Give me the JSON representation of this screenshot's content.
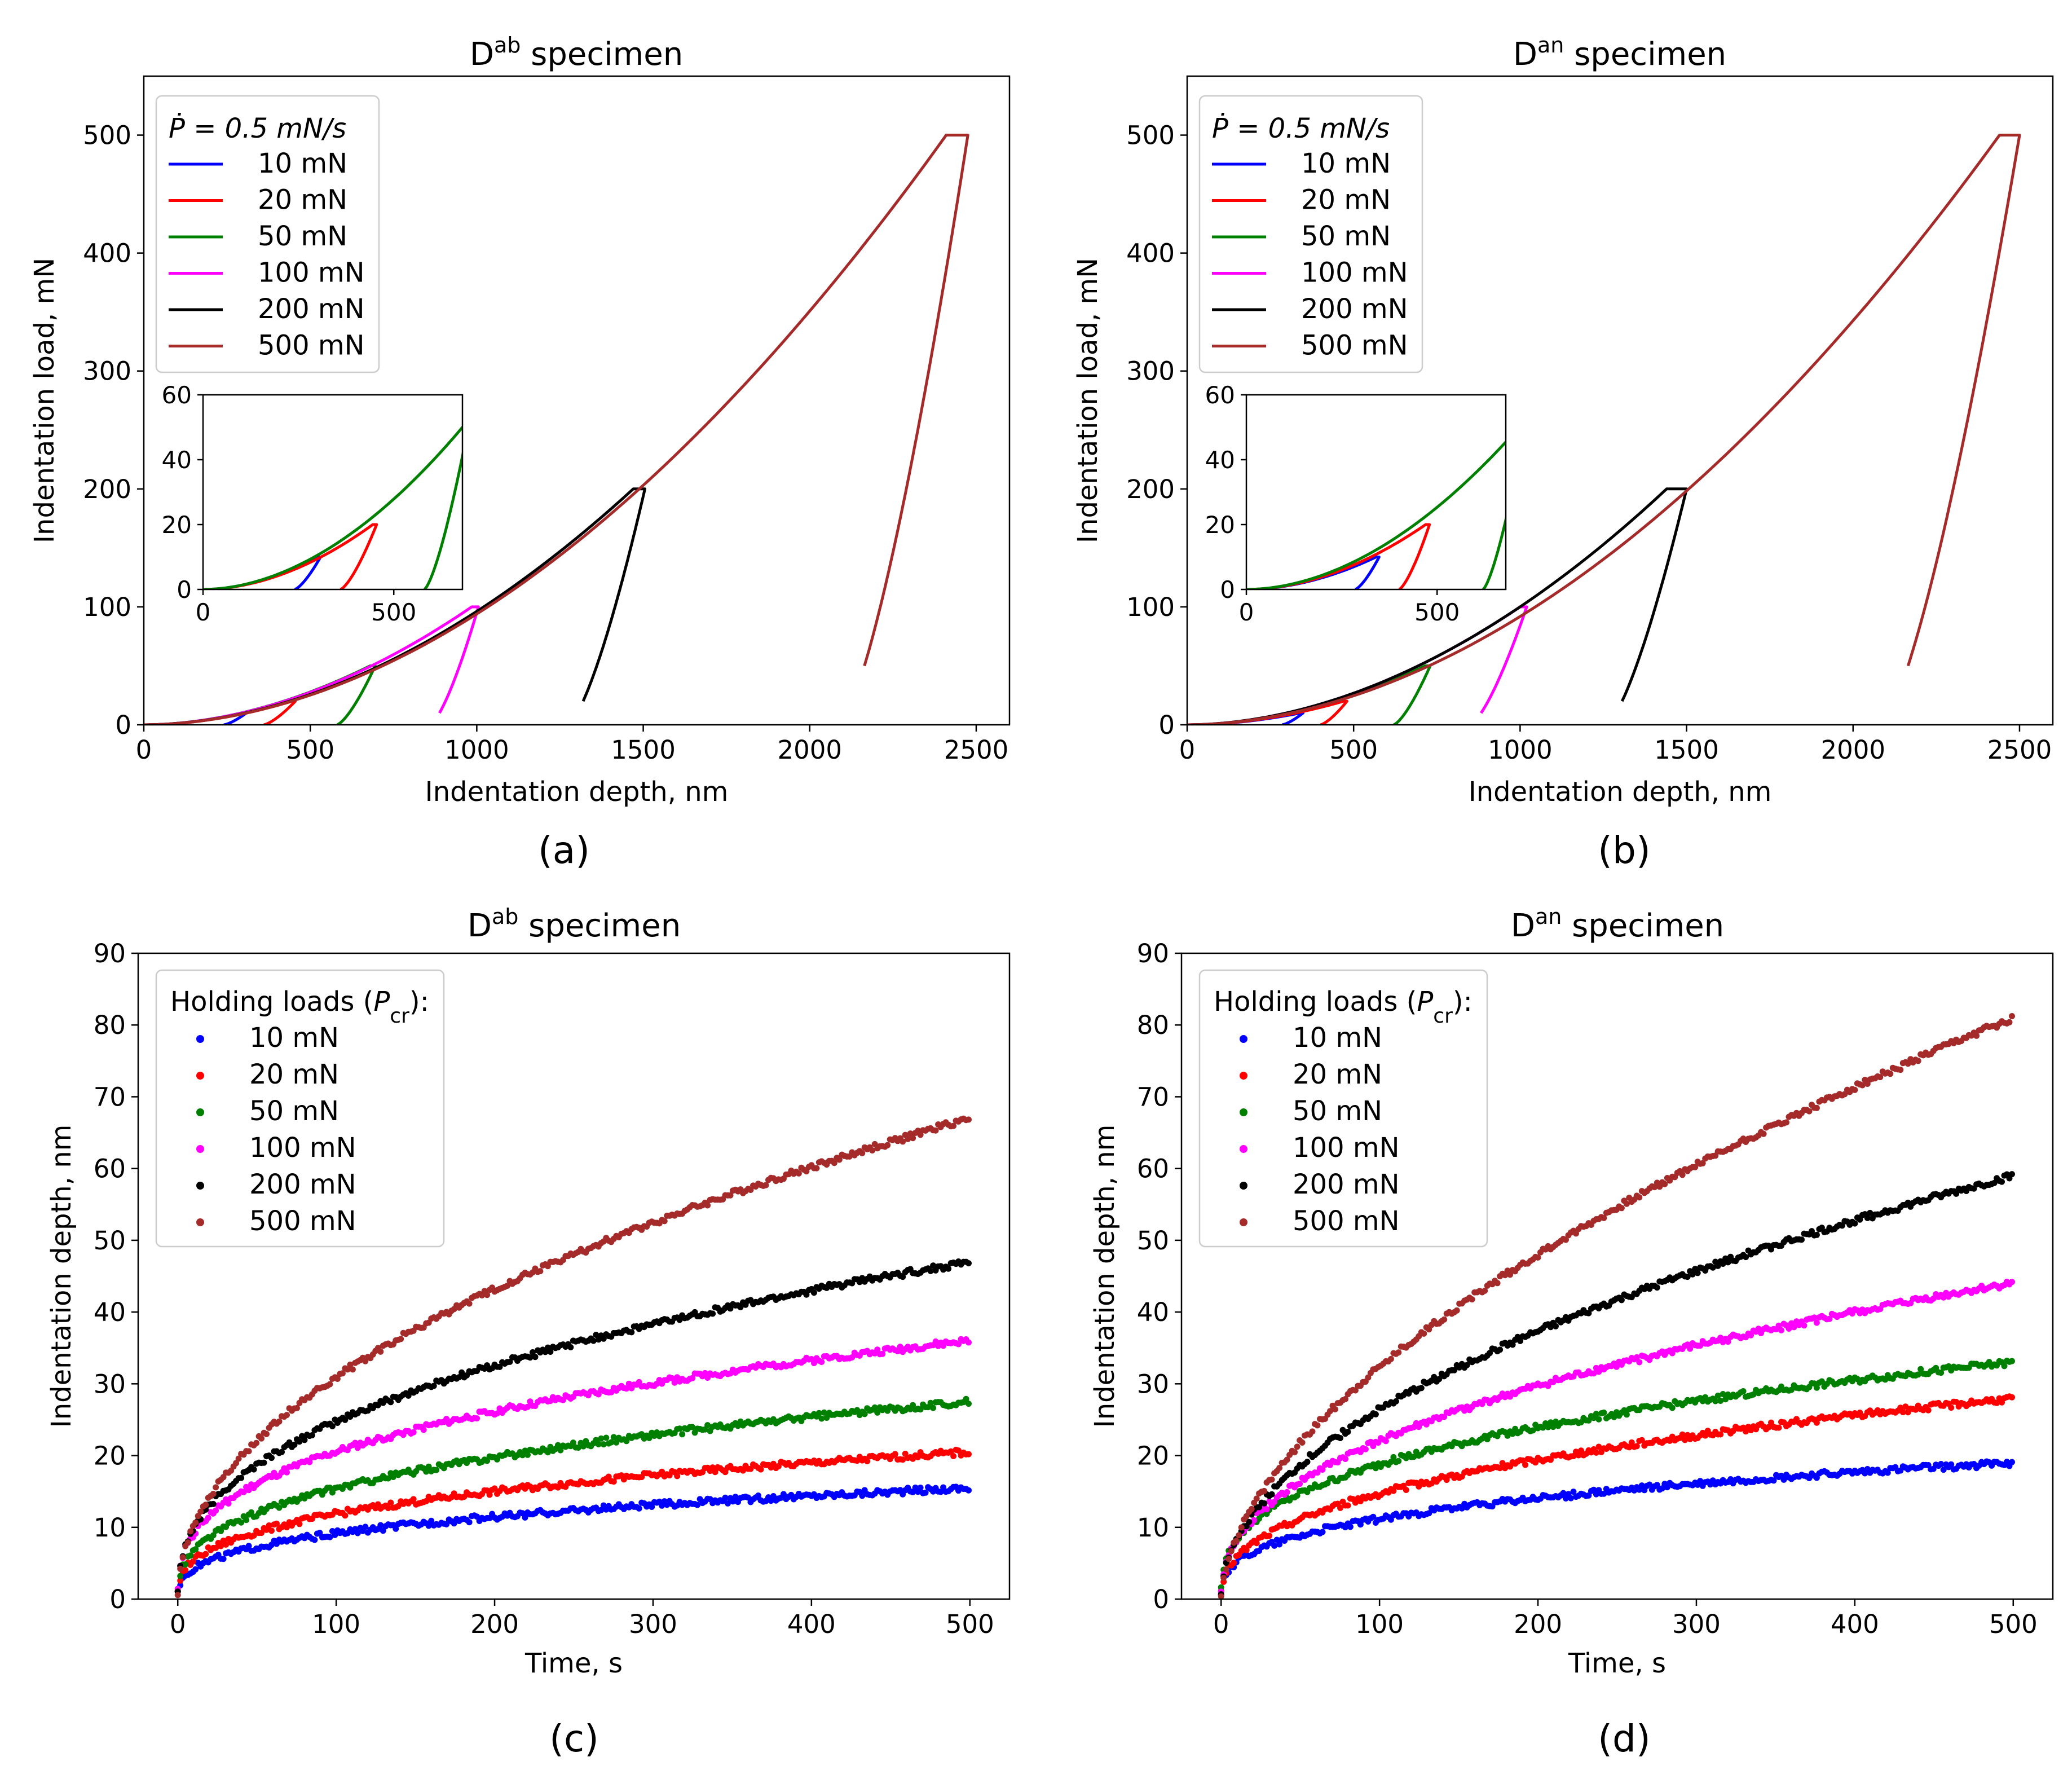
{
  "figure": {
    "captions": [
      "(a)",
      "(b)",
      "(c)",
      "(d)"
    ]
  },
  "chart_data": [
    {
      "id": "a",
      "type": "line",
      "title_main": "D",
      "title_sup": "ab",
      "title_rest": " specimen",
      "xlabel": "Indentation depth, nm",
      "ylabel": "Indentation load, mN",
      "xlim": [
        0,
        2600
      ],
      "ylim": [
        0,
        550
      ],
      "xticks": [
        0,
        500,
        1000,
        1500,
        2000,
        2500
      ],
      "yticks": [
        0,
        100,
        200,
        300,
        400,
        500
      ],
      "legend_title": "Ṗ = 0.5 mN/s",
      "legend_position": "upper-left",
      "series": [
        {
          "name": "10 mN",
          "color": "#0000ff",
          "max_load": 10,
          "max_depth": 300,
          "hold": 8,
          "final_depth": 240,
          "unload_end_load": 0
        },
        {
          "name": "20 mN",
          "color": "#ff0000",
          "max_load": 20,
          "max_depth": 445,
          "hold": 10,
          "final_depth": 360,
          "unload_end_load": 0
        },
        {
          "name": "50 mN",
          "color": "#008000",
          "max_load": 50,
          "max_depth": 680,
          "hold": 15,
          "final_depth": 580,
          "unload_end_load": 0
        },
        {
          "name": "100 mN",
          "color": "#ff00ff",
          "max_load": 100,
          "max_depth": 985,
          "hold": 20,
          "final_depth": 860,
          "unload_end_load": 10
        },
        {
          "name": "200 mN",
          "color": "#000000",
          "max_load": 200,
          "max_depth": 1470,
          "hold": 35,
          "final_depth": 1275,
          "unload_end_load": 20
        },
        {
          "name": "500 mN",
          "color": "#a52a2a",
          "max_load": 500,
          "max_depth": 2410,
          "hold": 65,
          "final_depth": 2090,
          "unload_end_load": 50
        }
      ],
      "inset": {
        "xlim": [
          0,
          680
        ],
        "ylim": [
          0,
          60
        ],
        "xticks": [
          0,
          500
        ],
        "yticks": [
          0,
          20,
          40,
          60
        ],
        "series_names": [
          "10 mN",
          "20 mN",
          "50 mN"
        ]
      }
    },
    {
      "id": "b",
      "type": "line",
      "title_main": "D",
      "title_sup": "an",
      "title_rest": " specimen",
      "xlabel": "Indentation depth, nm",
      "ylabel": "Indentation load, mN",
      "xlim": [
        0,
        2600
      ],
      "ylim": [
        0,
        550
      ],
      "xticks": [
        0,
        500,
        1000,
        1500,
        2000,
        2500
      ],
      "yticks": [
        0,
        100,
        200,
        300,
        400,
        500
      ],
      "legend_title": "Ṗ = 0.5 mN/s",
      "legend_position": "upper-left",
      "series": [
        {
          "name": "10 mN",
          "color": "#0000ff",
          "max_load": 10,
          "max_depth": 340,
          "hold": 8,
          "final_depth": 285,
          "unload_end_load": 0
        },
        {
          "name": "20 mN",
          "color": "#ff0000",
          "max_load": 20,
          "max_depth": 470,
          "hold": 10,
          "final_depth": 400,
          "unload_end_load": 0
        },
        {
          "name": "50 mN",
          "color": "#008000",
          "max_load": 50,
          "max_depth": 715,
          "hold": 15,
          "final_depth": 620,
          "unload_end_load": 0
        },
        {
          "name": "100 mN",
          "color": "#ff00ff",
          "max_load": 100,
          "max_depth": 1000,
          "hold": 20,
          "final_depth": 850,
          "unload_end_load": 10
        },
        {
          "name": "200 mN",
          "color": "#000000",
          "max_load": 200,
          "max_depth": 1440,
          "hold": 60,
          "final_depth": 1260,
          "unload_end_load": 20
        },
        {
          "name": "500 mN",
          "color": "#a52a2a",
          "max_load": 500,
          "max_depth": 2440,
          "hold": 60,
          "final_depth": 2085,
          "unload_end_load": 50
        }
      ],
      "inset": {
        "xlim": [
          0,
          680
        ],
        "ylim": [
          0,
          60
        ],
        "xticks": [
          0,
          500
        ],
        "yticks": [
          0,
          20,
          40,
          60
        ],
        "series_names": [
          "10 mN",
          "20 mN",
          "50 mN"
        ]
      }
    },
    {
      "id": "c",
      "type": "scatter",
      "title_main": "D",
      "title_sup": "ab",
      "title_rest": " specimen",
      "xlabel": "Time, s",
      "ylabel": "Indentation depth, nm",
      "xlim": [
        -25,
        525
      ],
      "ylim": [
        0,
        90
      ],
      "xticks": [
        0,
        100,
        200,
        300,
        400,
        500
      ],
      "yticks": [
        0,
        10,
        20,
        30,
        40,
        50,
        60,
        70,
        80,
        90
      ],
      "legend_title_text": "Holding loads (",
      "legend_title_var": "P",
      "legend_title_sub": "cr",
      "legend_title_end": "):",
      "legend_position": "upper-left",
      "series": [
        {
          "name": "10 mN",
          "color": "#0000ff",
          "final_value": 15.5,
          "exponent": 0.33
        },
        {
          "name": "20 mN",
          "color": "#ff0000",
          "final_value": 20.5,
          "exponent": 0.34
        },
        {
          "name": "50 mN",
          "color": "#008000",
          "final_value": 27.5,
          "exponent": 0.36
        },
        {
          "name": "100 mN",
          "color": "#ff00ff",
          "final_value": 36,
          "exponent": 0.35
        },
        {
          "name": "200 mN",
          "color": "#000000",
          "final_value": 47,
          "exponent": 0.4
        },
        {
          "name": "500 mN",
          "color": "#a52a2a",
          "final_value": 67,
          "exponent": 0.48
        }
      ]
    },
    {
      "id": "d",
      "type": "scatter",
      "title_main": "D",
      "title_sup": "an",
      "title_rest": " specimen",
      "xlabel": "Time, s",
      "ylabel": "Indentation depth, nm",
      "xlim": [
        -25,
        525
      ],
      "ylim": [
        0,
        90
      ],
      "xticks": [
        0,
        100,
        200,
        300,
        400,
        500
      ],
      "yticks": [
        0,
        10,
        20,
        30,
        40,
        50,
        60,
        70,
        80,
        90
      ],
      "legend_title_text": "Holding loads (",
      "legend_title_var": "P",
      "legend_title_sub": "cr",
      "legend_title_end": "):",
      "legend_position": "upper-left",
      "series": [
        {
          "name": "10 mN",
          "color": "#0000ff",
          "final_value": 19,
          "exponent": 0.33
        },
        {
          "name": "20 mN",
          "color": "#ff0000",
          "final_value": 28,
          "exponent": 0.4
        },
        {
          "name": "50 mN",
          "color": "#008000",
          "final_value": 33,
          "exponent": 0.35
        },
        {
          "name": "100 mN",
          "color": "#ff00ff",
          "final_value": 44,
          "exponent": 0.43
        },
        {
          "name": "200 mN",
          "color": "#000000",
          "final_value": 59,
          "exponent": 0.5
        },
        {
          "name": "500 mN",
          "color": "#a52a2a",
          "final_value": 81,
          "exponent": 0.57
        }
      ]
    }
  ]
}
